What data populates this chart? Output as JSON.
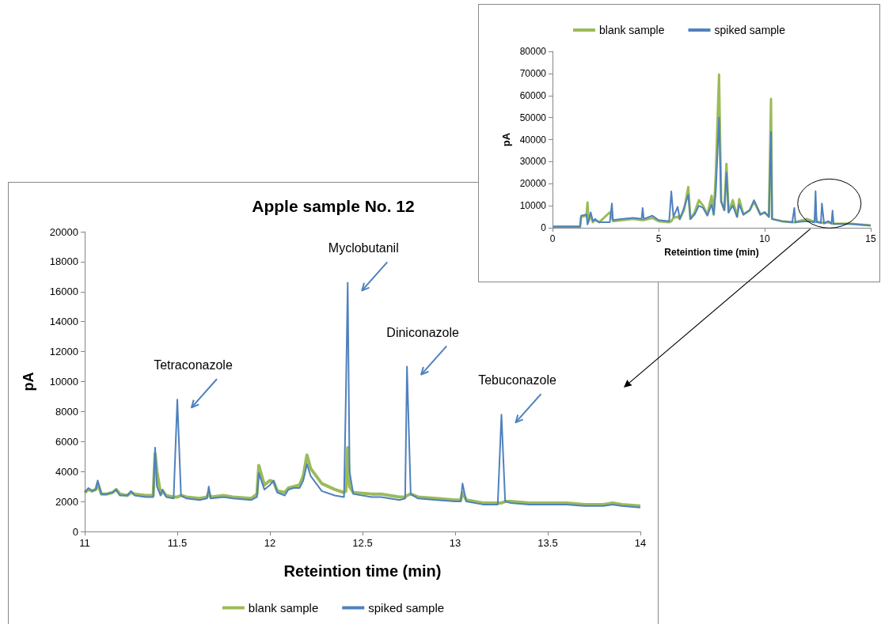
{
  "chart_data": [
    {
      "type": "line",
      "title": "Apple sample No. 12",
      "xlabel": "Reteintion time (min)",
      "ylabel": "pA",
      "legend": "bottom",
      "grid": false,
      "xlim": [
        11,
        14
      ],
      "xticks": [
        11,
        11.5,
        12,
        12.5,
        13,
        13.5,
        14
      ],
      "ylim": [
        0,
        20000
      ],
      "yticks": [
        0,
        2000,
        4000,
        6000,
        8000,
        10000,
        12000,
        14000,
        16000,
        18000,
        20000
      ],
      "x": [
        11.0,
        11.02,
        11.04,
        11.06,
        11.07,
        11.09,
        11.12,
        11.15,
        11.17,
        11.19,
        11.23,
        11.25,
        11.27,
        11.33,
        11.37,
        11.38,
        11.39,
        11.41,
        11.42,
        11.44,
        11.48,
        11.5,
        11.52,
        11.55,
        11.62,
        11.66,
        11.67,
        11.68,
        11.75,
        11.8,
        11.9,
        11.93,
        11.94,
        11.97,
        12.0,
        12.02,
        12.04,
        12.08,
        12.1,
        12.13,
        12.16,
        12.18,
        12.2,
        12.22,
        12.28,
        12.35,
        12.4,
        12.41,
        12.42,
        12.43,
        12.45,
        12.55,
        12.6,
        12.7,
        12.73,
        12.74,
        12.76,
        12.8,
        12.9,
        13.0,
        13.03,
        13.04,
        13.06,
        13.15,
        13.23,
        13.25,
        13.27,
        13.3,
        13.4,
        13.5,
        13.6,
        13.7,
        13.8,
        13.85,
        13.9,
        14.0
      ],
      "series": [
        {
          "name": "blank sample",
          "color": "#9bbb59",
          "values": [
            2600,
            2800,
            2700,
            2800,
            3200,
            2500,
            2500,
            2600,
            2800,
            2500,
            2400,
            2600,
            2500,
            2400,
            2400,
            5200,
            4000,
            2500,
            2700,
            2400,
            2300,
            2300,
            2400,
            2300,
            2200,
            2300,
            2600,
            2300,
            2400,
            2300,
            2200,
            2500,
            4400,
            3100,
            3400,
            3300,
            2700,
            2600,
            2900,
            3000,
            3100,
            3700,
            5100,
            4200,
            3200,
            2800,
            2600,
            2700,
            5600,
            3000,
            2600,
            2500,
            2500,
            2300,
            2300,
            2400,
            2500,
            2300,
            2200,
            2100,
            2100,
            2600,
            2100,
            1900,
            1900,
            1900,
            2000,
            2000,
            1900,
            1900,
            1900,
            1800,
            1800,
            1900,
            1800,
            1700
          ]
        },
        {
          "name": "spiked sample",
          "color": "#4f81bd",
          "values": [
            2600,
            2900,
            2700,
            2800,
            3400,
            2500,
            2500,
            2600,
            2800,
            2400,
            2400,
            2700,
            2400,
            2300,
            2300,
            5600,
            3000,
            2400,
            2800,
            2300,
            2200,
            8800,
            2400,
            2200,
            2100,
            2200,
            3000,
            2200,
            2300,
            2200,
            2100,
            2300,
            3900,
            2800,
            3100,
            3400,
            2600,
            2400,
            2800,
            2900,
            2900,
            3400,
            4500,
            3700,
            2700,
            2400,
            2300,
            9000,
            16600,
            4000,
            2500,
            2300,
            2300,
            2100,
            2200,
            11000,
            2500,
            2200,
            2100,
            2000,
            2000,
            3200,
            2000,
            1800,
            1800,
            7800,
            2000,
            1900,
            1800,
            1800,
            1800,
            1700,
            1700,
            1800,
            1700,
            1600
          ]
        }
      ],
      "annotations": [
        {
          "text": "Tetraconazole",
          "x": 11.5,
          "y": 8800
        },
        {
          "text": "Myclobutanil",
          "x": 12.42,
          "y": 16600
        },
        {
          "text": "Diniconazole",
          "x": 12.74,
          "y": 11000
        },
        {
          "text": "Tebuconazole",
          "x": 13.25,
          "y": 7800
        }
      ]
    },
    {
      "type": "line",
      "xlabel": "Reteintion time (min)",
      "ylabel": "pA",
      "legend": "top",
      "grid": false,
      "xlim": [
        0,
        15
      ],
      "xticks": [
        0,
        5,
        10,
        15
      ],
      "ylim": [
        0,
        80000
      ],
      "yticks": [
        0,
        10000,
        20000,
        30000,
        40000,
        50000,
        60000,
        70000,
        80000
      ],
      "x": [
        0,
        1.3,
        1.35,
        1.6,
        1.65,
        1.7,
        1.8,
        1.9,
        2.0,
        2.2,
        2.7,
        2.8,
        2.85,
        3.3,
        3.8,
        4.2,
        4.25,
        4.3,
        4.7,
        5.0,
        5.5,
        5.6,
        5.7,
        5.9,
        6.0,
        6.2,
        6.4,
        6.5,
        6.7,
        6.9,
        7.1,
        7.3,
        7.5,
        7.6,
        7.7,
        7.85,
        7.95,
        8.1,
        8.2,
        8.3,
        8.5,
        8.7,
        8.8,
        9.0,
        9.3,
        9.5,
        9.8,
        10.0,
        10.2,
        10.3,
        10.35,
        10.8,
        11.3,
        11.4,
        11.45,
        12.0,
        12.35,
        12.4,
        12.45,
        12.65,
        12.7,
        12.8,
        13.0,
        13.15,
        13.2,
        13.25,
        14.0,
        15.0
      ],
      "series": [
        {
          "name": "blank sample",
          "color": "#9bbb59",
          "values": [
            500,
            500,
            5000,
            5500,
            11500,
            3000,
            6000,
            2500,
            3500,
            2500,
            7000,
            5000,
            3000,
            3500,
            4000,
            3500,
            3500,
            3500,
            4500,
            3000,
            2500,
            3000,
            4500,
            5000,
            4000,
            8000,
            18500,
            4000,
            7000,
            12500,
            10000,
            6000,
            14500,
            6000,
            25000,
            69500,
            12000,
            8000,
            29000,
            7000,
            12500,
            5000,
            13000,
            6000,
            8000,
            12000,
            6000,
            7000,
            5000,
            58500,
            4000,
            3000,
            2500,
            2500,
            2500,
            4000,
            2600,
            5600,
            3000,
            2300,
            2400,
            2100,
            2500,
            2000,
            1900,
            1800,
            1900,
            1100
          ]
        },
        {
          "name": "spiked sample",
          "color": "#4f81bd",
          "values": [
            500,
            500,
            5500,
            6000,
            1500,
            3000,
            7000,
            3000,
            4000,
            2500,
            2500,
            11000,
            3500,
            4000,
            4500,
            4000,
            9000,
            4000,
            5500,
            3500,
            3000,
            16500,
            5000,
            9500,
            4000,
            9000,
            15000,
            4000,
            6000,
            10000,
            9000,
            5500,
            10500,
            6000,
            17000,
            50000,
            12000,
            8000,
            25000,
            7000,
            10000,
            5000,
            10500,
            6000,
            8000,
            12500,
            6000,
            7000,
            5000,
            43500,
            4000,
            3000,
            2500,
            9000,
            2500,
            3000,
            2500,
            16600,
            2500,
            2200,
            11000,
            2000,
            3000,
            1900,
            7800,
            1800,
            1800,
            1000
          ]
        }
      ]
    }
  ]
}
